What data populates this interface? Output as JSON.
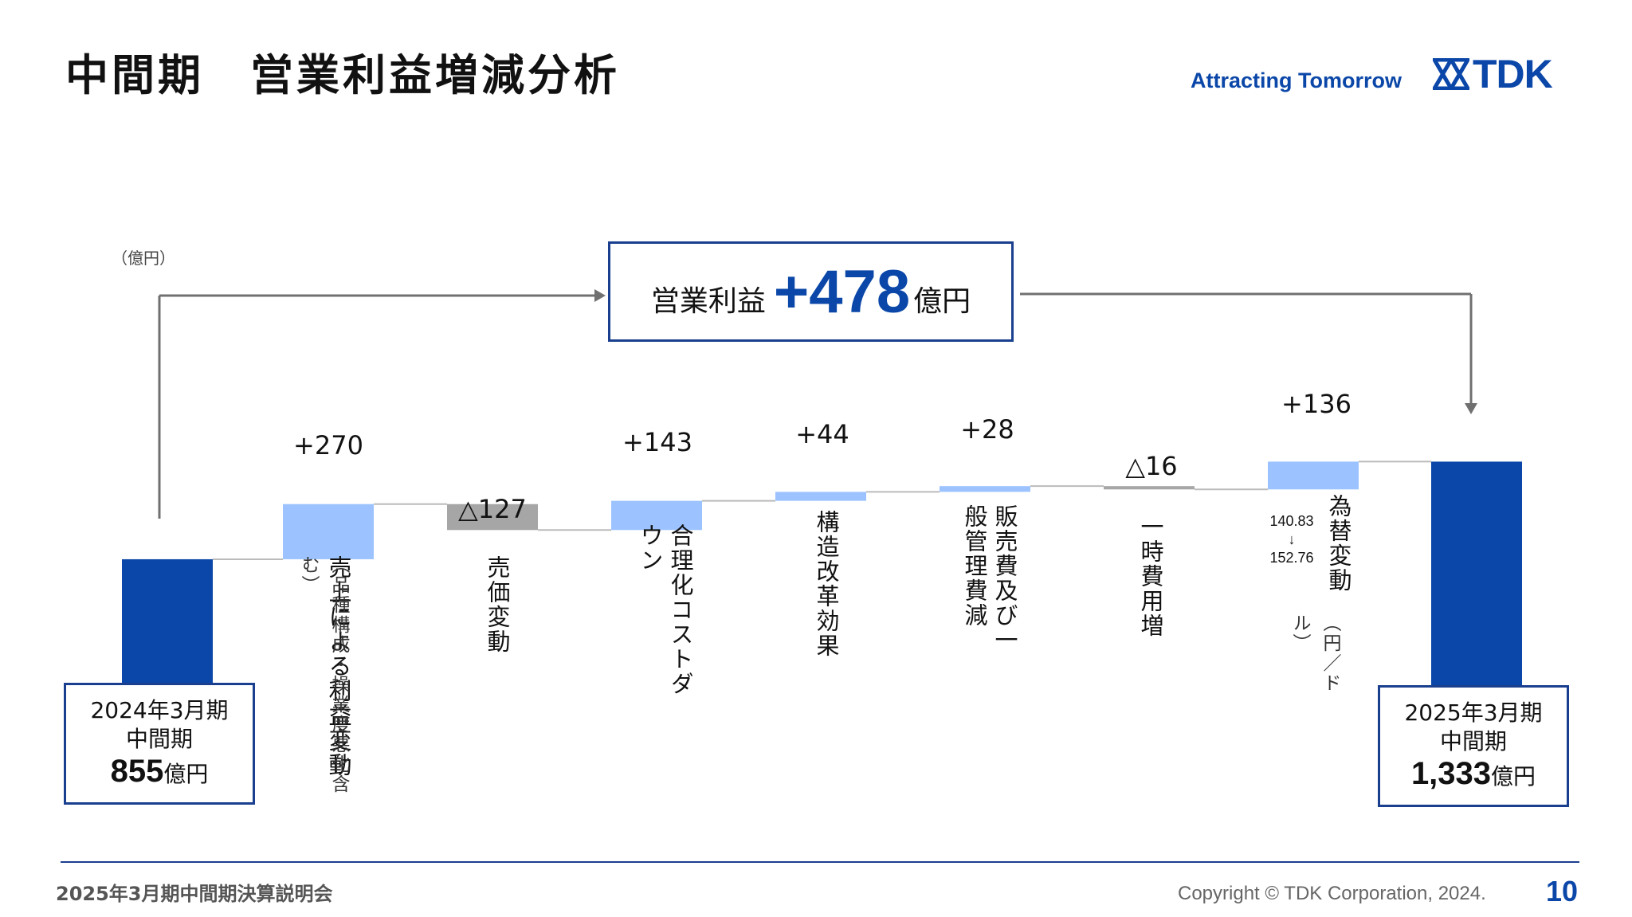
{
  "header": {
    "title": "中間期　営業利益増減分析",
    "tagline": "Attracting Tomorrow",
    "logo_text": "TDK"
  },
  "unit_label": "（億円）",
  "callout": {
    "label": "営業利益",
    "value": "+478",
    "unit": "億円"
  },
  "start_box": {
    "line1": "2024年3月期",
    "line2": "中間期",
    "value": "855",
    "unit": "億円"
  },
  "end_box": {
    "line1": "2025年3月期",
    "line2": "中間期",
    "value": "1,333",
    "unit": "億円"
  },
  "chart_data": {
    "type": "waterfall",
    "unit": "億円",
    "start": {
      "value": 855
    },
    "steps": [
      {
        "label": "売上による利益変動",
        "sub": "（品種構成・操業度悪化含む）",
        "value": 270,
        "display": "+270"
      },
      {
        "label": "売価変動",
        "value": -127,
        "display": "△127"
      },
      {
        "label": "合理化コストダウン",
        "value": 143,
        "display": "+143"
      },
      {
        "label": "構造改革効果",
        "value": 44,
        "display": "+44"
      },
      {
        "label": "販売費及び一般管理費減",
        "value": 28,
        "display": "+28"
      },
      {
        "label": "一時費用増",
        "value": -16,
        "display": "△16"
      },
      {
        "label": "為替変動",
        "value": 136,
        "display": "+136",
        "fx_from": "140.83",
        "fx_arrow": "↓",
        "fx_to": "152.76",
        "fx_unit": "（円／ドル）"
      }
    ],
    "end": {
      "value": 1333
    },
    "total_change": 478,
    "colors": {
      "total": "#0b47a8",
      "increase": "#9cc3ff",
      "decrease": "#a6a6a6",
      "connector": "#bbbbbb",
      "arrow": "#707070"
    }
  },
  "footer": {
    "left": "2025年3月期中間期決算説明会",
    "copyright": "Copyright  © TDK Corporation, 2024.",
    "page": "10"
  }
}
